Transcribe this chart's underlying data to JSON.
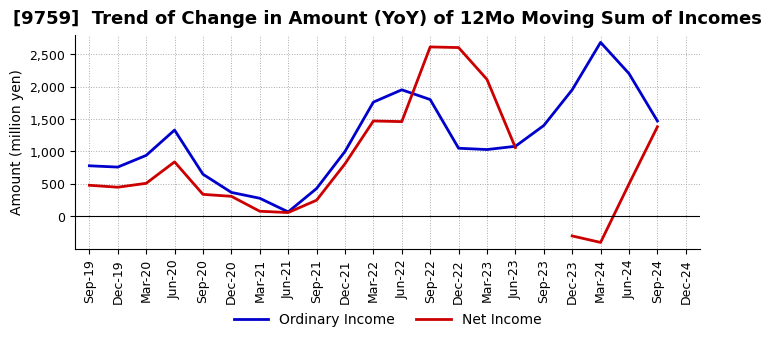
{
  "title": "[9759]  Trend of Change in Amount (YoY) of 12Mo Moving Sum of Incomes",
  "ylabel": "Amount (million yen)",
  "x_labels": [
    "Sep-19",
    "Dec-19",
    "Mar-20",
    "Jun-20",
    "Sep-20",
    "Dec-20",
    "Mar-21",
    "Jun-21",
    "Sep-21",
    "Dec-21",
    "Mar-22",
    "Jun-22",
    "Sep-22",
    "Dec-22",
    "Mar-23",
    "Jun-23",
    "Sep-23",
    "Dec-23",
    "Mar-24",
    "Jun-24",
    "Sep-24",
    "Dec-24"
  ],
  "ordinary_income": [
    780,
    760,
    940,
    1330,
    650,
    370,
    280,
    70,
    430,
    1000,
    1760,
    1950,
    1800,
    1050,
    1030,
    1080,
    1400,
    1950,
    2680,
    2200,
    1470,
    null
  ],
  "net_income": [
    480,
    450,
    510,
    840,
    340,
    310,
    80,
    60,
    250,
    810,
    1470,
    1460,
    2610,
    2600,
    2110,
    1060,
    null,
    -300,
    -400,
    500,
    1380,
    null
  ],
  "ordinary_color": "#0000cc",
  "net_color": "#cc0000",
  "line_width": 2.0,
  "ylim": [
    -500,
    2800
  ],
  "yticks": [
    0,
    500,
    1000,
    1500,
    2000,
    2500
  ],
  "grid_color": "#aaaaaa",
  "bg_color": "#ffffff",
  "title_fontsize": 13,
  "axis_fontsize": 10,
  "tick_fontsize": 9,
  "legend_labels": [
    "Ordinary Income",
    "Net Income"
  ]
}
